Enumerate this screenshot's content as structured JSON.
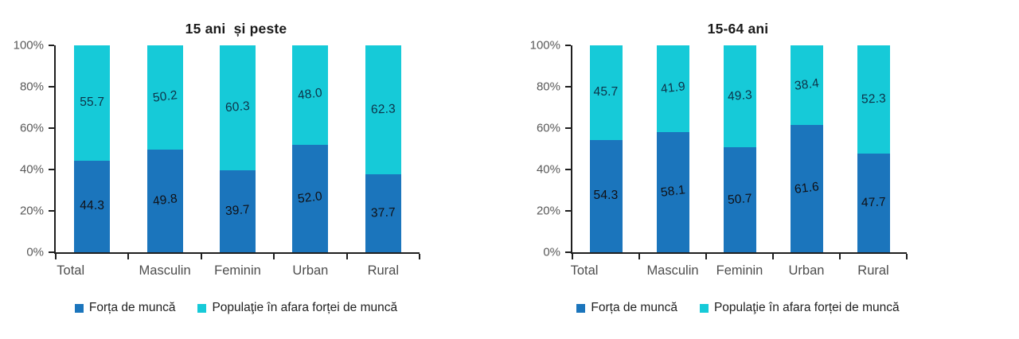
{
  "chart_data": [
    {
      "type": "bar",
      "stacked": true,
      "title": "15 ani  și peste",
      "categories": [
        "Total",
        "Masculin",
        "Feminin",
        "Urban",
        "Rural"
      ],
      "series": [
        {
          "name": "Forța de muncă",
          "color": "#1B75BC",
          "label_color": "#101014",
          "values": [
            44.3,
            49.8,
            39.7,
            52.0,
            37.7
          ]
        },
        {
          "name": "Populaţie în afara forței de muncă",
          "color": "#16CAD8",
          "label_color": "#0D3349",
          "values": [
            55.7,
            50.2,
            60.3,
            48.0,
            62.3
          ]
        }
      ],
      "ylabel": "",
      "ylim": [
        0,
        100
      ],
      "yticks": [
        "0%",
        "20%",
        "40%",
        "60%",
        "80%",
        "100%"
      ],
      "grid": false,
      "legend_position": "bottom",
      "value_decimal_separator": "."
    },
    {
      "type": "bar",
      "stacked": true,
      "title": "15-64 ani",
      "categories": [
        "Total",
        "Masculin",
        "Feminin",
        "Urban",
        "Rural"
      ],
      "series": [
        {
          "name": "Forța de muncă",
          "color": "#1B75BC",
          "label_color": "#101014",
          "values": [
            54.3,
            58.1,
            50.7,
            61.6,
            47.7
          ]
        },
        {
          "name": "Populaţie în afara forței de muncă",
          "color": "#16CAD8",
          "label_color": "#0D3349",
          "values": [
            45.7,
            41.9,
            49.3,
            38.4,
            52.3
          ]
        }
      ],
      "ylabel": "",
      "ylim": [
        0,
        100
      ],
      "yticks": [
        "0%",
        "20%",
        "40%",
        "60%",
        "80%",
        "100%"
      ],
      "grid": false,
      "legend_position": "bottom",
      "value_decimal_separator": "."
    }
  ]
}
